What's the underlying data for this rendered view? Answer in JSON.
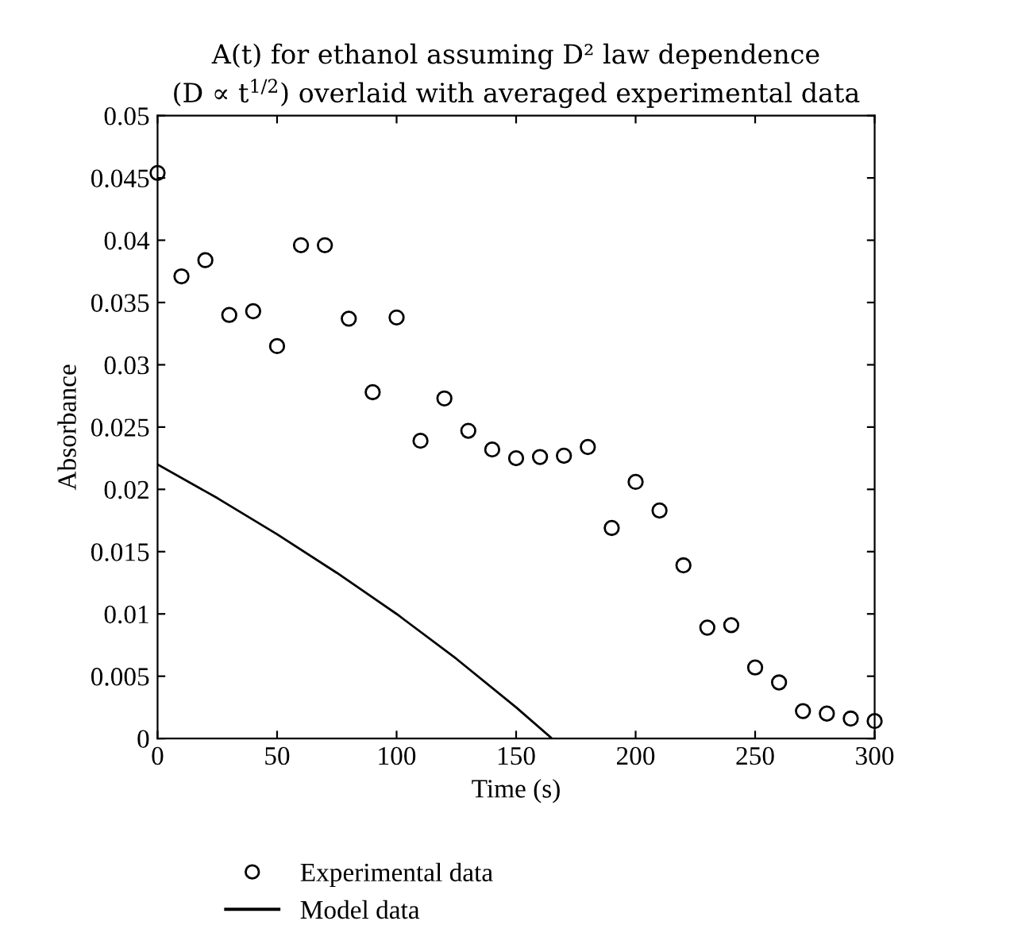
{
  "chart_data": {
    "type": "scatter",
    "title": "A(t) for ethanol assuming D² law dependence\n(D ∝ t$^{1/2}$) overlaid with averaged experimental data",
    "xlabel": "Time (s)",
    "ylabel": "Absorbance",
    "series": [
      {
        "name": "Experimental data",
        "color": "#000000",
        "marker": "circle",
        "x": [
          0,
          10,
          20,
          30,
          40,
          50,
          60,
          70,
          80,
          90,
          100,
          110,
          120,
          130,
          140,
          150,
          160,
          170,
          180,
          190,
          200,
          210,
          220,
          230,
          240,
          250,
          260,
          270,
          280,
          290,
          300
        ],
        "values": [
          0.0454,
          0.0371,
          0.0384,
          0.034,
          0.0343,
          0.0315,
          0.0396,
          0.0396,
          0.0337,
          0.0278,
          0.0338,
          0.0239,
          0.0273,
          0.0247,
          0.0232,
          0.0225,
          0.0226,
          0.0227,
          0.0234,
          0.0169,
          0.0206,
          0.0183,
          0.0139,
          0.0089,
          0.0091,
          0.0057,
          0.0045,
          0.0022,
          0.002,
          0.0016,
          0.0014
        ]
      },
      {
        "name": "Model data",
        "type": "line",
        "color": "#000000",
        "line_style": "solid",
        "x": [
          0,
          25,
          50,
          75,
          100,
          125,
          150,
          165
        ],
        "values": [
          0.022,
          0.0193,
          0.0164,
          0.0133,
          0.01,
          0.0064,
          0.0025,
          0
        ]
      }
    ],
    "xlim": [
      0,
      300
    ],
    "xticks": [
      0,
      50,
      100,
      150,
      200,
      250,
      300
    ],
    "ylim": [
      0,
      0.05
    ],
    "yticks": [
      0,
      0.005,
      0.01,
      0.015,
      0.02,
      0.025,
      0.03,
      0.035,
      0.04,
      0.045,
      0.05
    ],
    "grid": false,
    "legend": "bottom left"
  }
}
